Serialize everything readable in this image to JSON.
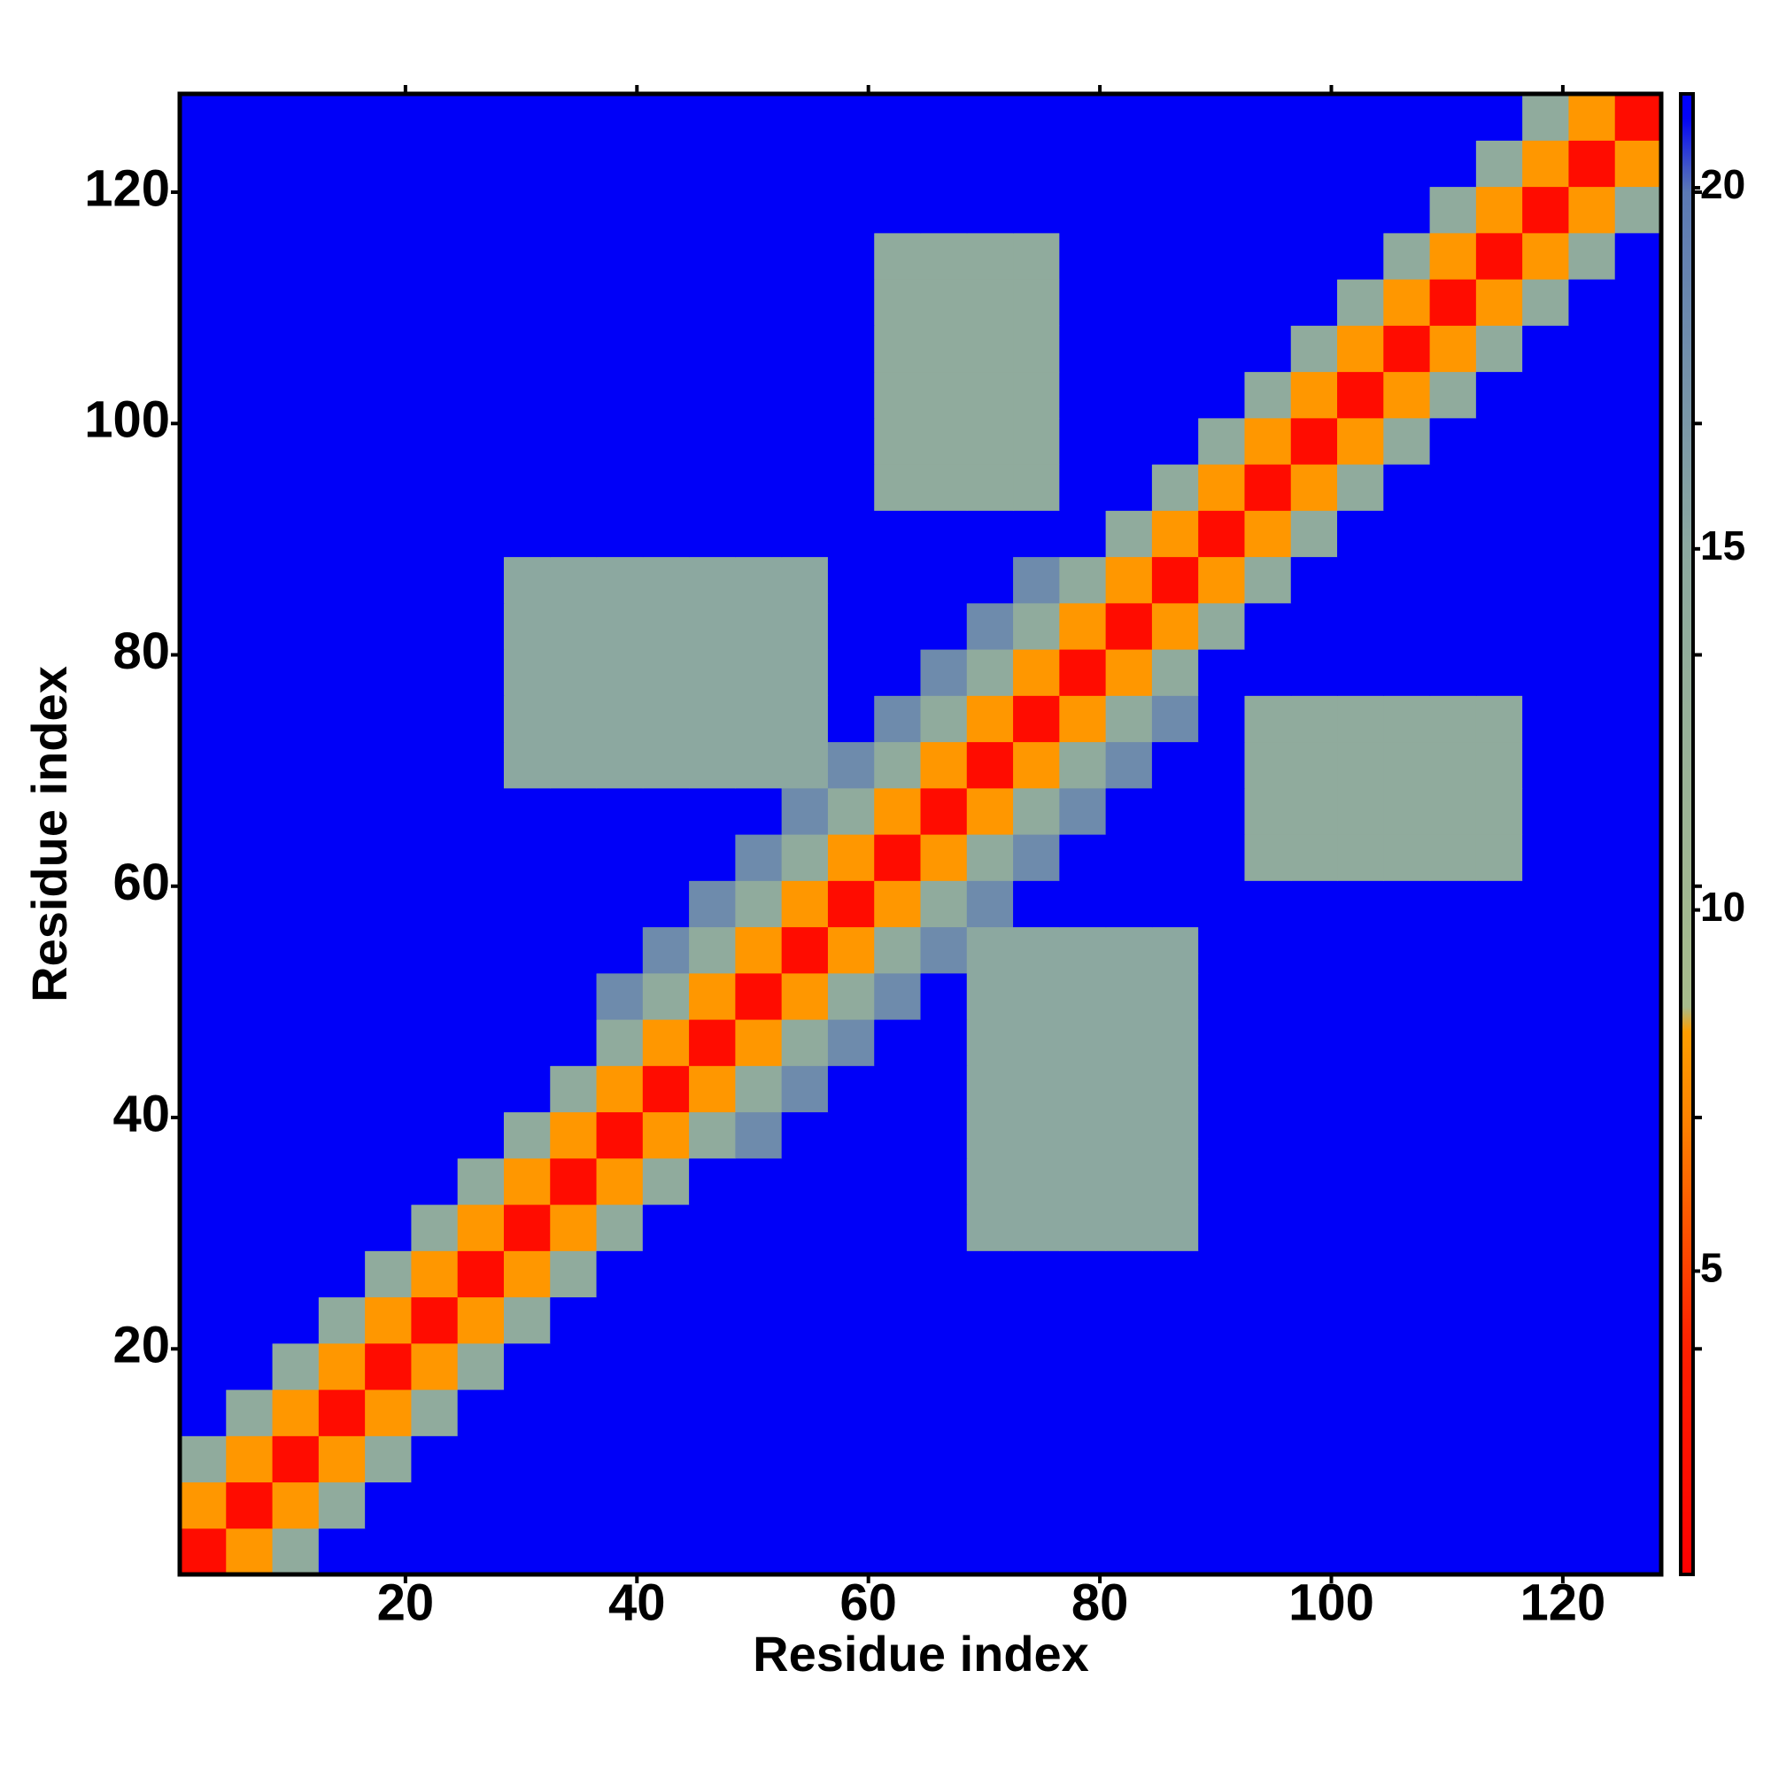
{
  "chart_data": {
    "type": "heatmap",
    "xlabel": "Residue index",
    "ylabel": "Residue index",
    "xbins": [
      0.5,
      4.5,
      8.5,
      12.5,
      16.5,
      20.5,
      24.5,
      28.5,
      32.5,
      36.5,
      40.5,
      44.5,
      48.5,
      52.5,
      56.5,
      60.5,
      64.5,
      68.5,
      72.5,
      76.5,
      80.5,
      84.5,
      88.5,
      92.5,
      96.5,
      100.5,
      104.5,
      108.5,
      112.5,
      116.5,
      120.5,
      124.5,
      128.5
    ],
    "ybins": [
      0.5,
      4.5,
      8.5,
      12.5,
      16.5,
      20.5,
      24.5,
      28.5,
      32.5,
      36.5,
      40.5,
      44.5,
      48.5,
      52.5,
      56.5,
      60.5,
      64.5,
      68.5,
      72.5,
      76.5,
      80.5,
      84.5,
      88.5,
      92.5,
      96.5,
      100.5,
      104.5,
      108.5,
      112.5,
      116.5,
      120.5,
      124.5,
      128.5
    ],
    "xlim": [
      0.5,
      128.5
    ],
    "ylim": [
      0.5,
      128.5
    ],
    "xticks": [
      20,
      40,
      60,
      80,
      100,
      120
    ],
    "yticks": [
      20,
      40,
      60,
      80,
      100,
      120
    ],
    "clim": [
      0.8,
      21.3
    ],
    "cticks": [
      5,
      10,
      15,
      20
    ],
    "colorscale": [
      {
        "value": 0.8,
        "color": "#ff0000"
      },
      {
        "value": 4,
        "color": "#ff2000"
      },
      {
        "value": 7,
        "color": "#ff8000"
      },
      {
        "value": 8.4,
        "color": "#ffa000"
      },
      {
        "value": 8.6,
        "color": "#a8bc8c"
      },
      {
        "value": 15,
        "color": "#8ca8a0"
      },
      {
        "value": 20,
        "color": "#5a78b4"
      },
      {
        "value": 21,
        "color": "#0000f8"
      },
      {
        "value": 21.3,
        "color": "#0000ff"
      }
    ],
    "values": [
      [
        2,
        8,
        14,
        21,
        21,
        21,
        21,
        21,
        21,
        21,
        21,
        21,
        21,
        21,
        21,
        21,
        21,
        21,
        21,
        21,
        21,
        21,
        21,
        21,
        21,
        21,
        21,
        21,
        21,
        21,
        21,
        21
      ],
      [
        8,
        2,
        8,
        14,
        21,
        21,
        21,
        21,
        21,
        21,
        21,
        21,
        21,
        21,
        21,
        21,
        21,
        21,
        21,
        21,
        21,
        21,
        21,
        21,
        21,
        21,
        21,
        21,
        21,
        21,
        21,
        21
      ],
      [
        14,
        8,
        2,
        8,
        14,
        21,
        21,
        21,
        21,
        21,
        21,
        21,
        21,
        21,
        21,
        21,
        21,
        21,
        21,
        21,
        21,
        21,
        21,
        21,
        21,
        21,
        21,
        21,
        21,
        21,
        21,
        21
      ],
      [
        21,
        14,
        8,
        2,
        8,
        14,
        21,
        21,
        21,
        21,
        21,
        21,
        21,
        21,
        21,
        21,
        21,
        21,
        21,
        21,
        21,
        21,
        21,
        21,
        21,
        21,
        21,
        21,
        21,
        21,
        21,
        21
      ],
      [
        21,
        21,
        14,
        8,
        2,
        8,
        14,
        21,
        21,
        21,
        21,
        21,
        21,
        21,
        21,
        21,
        21,
        21,
        21,
        21,
        21,
        21,
        21,
        21,
        21,
        21,
        21,
        21,
        21,
        21,
        21,
        21
      ],
      [
        21,
        21,
        21,
        14,
        8,
        2,
        8,
        14,
        21,
        21,
        21,
        21,
        21,
        21,
        21,
        21,
        21,
        21,
        21,
        21,
        21,
        21,
        21,
        21,
        21,
        21,
        21,
        21,
        21,
        21,
        21,
        21
      ],
      [
        21,
        21,
        21,
        21,
        14,
        8,
        2,
        8,
        14,
        21,
        21,
        21,
        21,
        21,
        21,
        21,
        21,
        21,
        21,
        21,
        21,
        21,
        21,
        21,
        21,
        21,
        21,
        21,
        21,
        21,
        21,
        21
      ],
      [
        21,
        21,
        21,
        21,
        21,
        14,
        8,
        2,
        8,
        14,
        21,
        21,
        21,
        21,
        21,
        21,
        21,
        15,
        15,
        15,
        15,
        15,
        21,
        21,
        21,
        21,
        21,
        21,
        21,
        21,
        21,
        21
      ],
      [
        21,
        21,
        21,
        21,
        21,
        21,
        14,
        8,
        2,
        8,
        14,
        21,
        21,
        21,
        21,
        21,
        21,
        15,
        15,
        15,
        15,
        15,
        21,
        21,
        21,
        21,
        21,
        21,
        21,
        21,
        21,
        21
      ],
      [
        21,
        21,
        21,
        21,
        21,
        21,
        21,
        14,
        8,
        2,
        8,
        14,
        18,
        21,
        21,
        21,
        21,
        15,
        15,
        15,
        15,
        15,
        21,
        21,
        21,
        21,
        21,
        21,
        21,
        21,
        21,
        21
      ],
      [
        21,
        21,
        21,
        21,
        21,
        21,
        21,
        21,
        14,
        8,
        2,
        8,
        14,
        18,
        21,
        21,
        21,
        15,
        15,
        15,
        15,
        15,
        21,
        21,
        21,
        21,
        21,
        21,
        21,
        21,
        21,
        21
      ],
      [
        21,
        21,
        21,
        21,
        21,
        21,
        21,
        21,
        21,
        14,
        8,
        2,
        8,
        14,
        18,
        21,
        21,
        15,
        15,
        15,
        15,
        15,
        21,
        21,
        21,
        21,
        21,
        21,
        21,
        21,
        21,
        21
      ],
      [
        21,
        21,
        21,
        21,
        21,
        21,
        21,
        21,
        21,
        18,
        14,
        8,
        2,
        8,
        14,
        18,
        21,
        15,
        15,
        15,
        15,
        15,
        21,
        21,
        21,
        21,
        21,
        21,
        21,
        21,
        21,
        21
      ],
      [
        21,
        21,
        21,
        21,
        21,
        21,
        21,
        21,
        21,
        21,
        18,
        14,
        8,
        2,
        8,
        14,
        18,
        15,
        15,
        15,
        15,
        15,
        21,
        21,
        21,
        21,
        21,
        21,
        21,
        21,
        21,
        21
      ],
      [
        21,
        21,
        21,
        21,
        21,
        21,
        21,
        21,
        21,
        21,
        21,
        18,
        14,
        8,
        2,
        8,
        14,
        18,
        21,
        21,
        21,
        21,
        21,
        21,
        21,
        21,
        21,
        21,
        21,
        21,
        21,
        21
      ],
      [
        21,
        21,
        21,
        21,
        21,
        21,
        21,
        21,
        21,
        21,
        21,
        21,
        18,
        14,
        8,
        2,
        8,
        14,
        18,
        21,
        21,
        21,
        21,
        14,
        14,
        14,
        14,
        14,
        14,
        21,
        21,
        21
      ],
      [
        21,
        21,
        21,
        21,
        21,
        21,
        21,
        21,
        21,
        21,
        21,
        21,
        21,
        18,
        14,
        8,
        2,
        8,
        14,
        18,
        21,
        21,
        21,
        14,
        14,
        14,
        14,
        14,
        14,
        21,
        21,
        21
      ],
      [
        21,
        21,
        21,
        21,
        21,
        21,
        21,
        15,
        15,
        15,
        15,
        15,
        15,
        15,
        18,
        14,
        8,
        2,
        8,
        14,
        18,
        21,
        21,
        14,
        14,
        14,
        14,
        14,
        14,
        21,
        21,
        21
      ],
      [
        21,
        21,
        21,
        21,
        21,
        21,
        21,
        15,
        15,
        15,
        15,
        15,
        15,
        15,
        21,
        18,
        14,
        8,
        2,
        8,
        14,
        18,
        21,
        14,
        14,
        14,
        14,
        14,
        14,
        21,
        21,
        21
      ],
      [
        21,
        21,
        21,
        21,
        21,
        21,
        21,
        15,
        15,
        15,
        15,
        15,
        15,
        15,
        21,
        21,
        18,
        14,
        8,
        2,
        8,
        14,
        21,
        21,
        21,
        21,
        21,
        21,
        21,
        21,
        21,
        21
      ],
      [
        21,
        21,
        21,
        21,
        21,
        21,
        21,
        15,
        15,
        15,
        15,
        15,
        15,
        15,
        21,
        21,
        21,
        18,
        14,
        8,
        2,
        8,
        14,
        21,
        21,
        21,
        21,
        21,
        21,
        21,
        21,
        21
      ],
      [
        21,
        21,
        21,
        21,
        21,
        21,
        21,
        15,
        15,
        15,
        15,
        15,
        15,
        15,
        21,
        21,
        21,
        21,
        18,
        14,
        8,
        2,
        8,
        14,
        21,
        21,
        21,
        21,
        21,
        21,
        21,
        21
      ],
      [
        21,
        21,
        21,
        21,
        21,
        21,
        21,
        21,
        21,
        21,
        21,
        21,
        21,
        21,
        21,
        21,
        21,
        21,
        21,
        21,
        14,
        8,
        2,
        8,
        14,
        21,
        21,
        21,
        21,
        21,
        21,
        21
      ],
      [
        21,
        21,
        21,
        21,
        21,
        21,
        21,
        21,
        21,
        21,
        21,
        21,
        21,
        21,
        21,
        14,
        14,
        14,
        14,
        21,
        21,
        14,
        8,
        2,
        8,
        14,
        21,
        21,
        21,
        21,
        21,
        21
      ],
      [
        21,
        21,
        21,
        21,
        21,
        21,
        21,
        21,
        21,
        21,
        21,
        21,
        21,
        21,
        21,
        14,
        14,
        14,
        14,
        21,
        21,
        21,
        14,
        8,
        2,
        8,
        14,
        21,
        21,
        21,
        21,
        21
      ],
      [
        21,
        21,
        21,
        21,
        21,
        21,
        21,
        21,
        21,
        21,
        21,
        21,
        21,
        21,
        21,
        14,
        14,
        14,
        14,
        21,
        21,
        21,
        21,
        14,
        8,
        2,
        8,
        14,
        21,
        21,
        21,
        21
      ],
      [
        21,
        21,
        21,
        21,
        21,
        21,
        21,
        21,
        21,
        21,
        21,
        21,
        21,
        21,
        21,
        14,
        14,
        14,
        14,
        21,
        21,
        21,
        21,
        21,
        14,
        8,
        2,
        8,
        14,
        21,
        21,
        21
      ],
      [
        21,
        21,
        21,
        21,
        21,
        21,
        21,
        21,
        21,
        21,
        21,
        21,
        21,
        21,
        21,
        14,
        14,
        14,
        14,
        21,
        21,
        21,
        21,
        21,
        21,
        14,
        8,
        2,
        8,
        14,
        21,
        21
      ],
      [
        21,
        21,
        21,
        21,
        21,
        21,
        21,
        21,
        21,
        21,
        21,
        21,
        21,
        21,
        21,
        14,
        14,
        14,
        14,
        21,
        21,
        21,
        21,
        21,
        21,
        21,
        14,
        8,
        2,
        8,
        14,
        21
      ],
      [
        21,
        21,
        21,
        21,
        21,
        21,
        21,
        21,
        21,
        21,
        21,
        21,
        21,
        21,
        21,
        21,
        21,
        21,
        21,
        21,
        21,
        21,
        21,
        21,
        21,
        21,
        21,
        14,
        8,
        2,
        8,
        14
      ],
      [
        21,
        21,
        21,
        21,
        21,
        21,
        21,
        21,
        21,
        21,
        21,
        21,
        21,
        21,
        21,
        21,
        21,
        21,
        21,
        21,
        21,
        21,
        21,
        21,
        21,
        21,
        21,
        21,
        14,
        8,
        2,
        8
      ],
      [
        21,
        21,
        21,
        21,
        21,
        21,
        21,
        21,
        21,
        21,
        21,
        21,
        21,
        21,
        21,
        21,
        21,
        21,
        21,
        21,
        21,
        21,
        21,
        21,
        21,
        21,
        21,
        21,
        21,
        14,
        8,
        2
      ]
    ]
  }
}
